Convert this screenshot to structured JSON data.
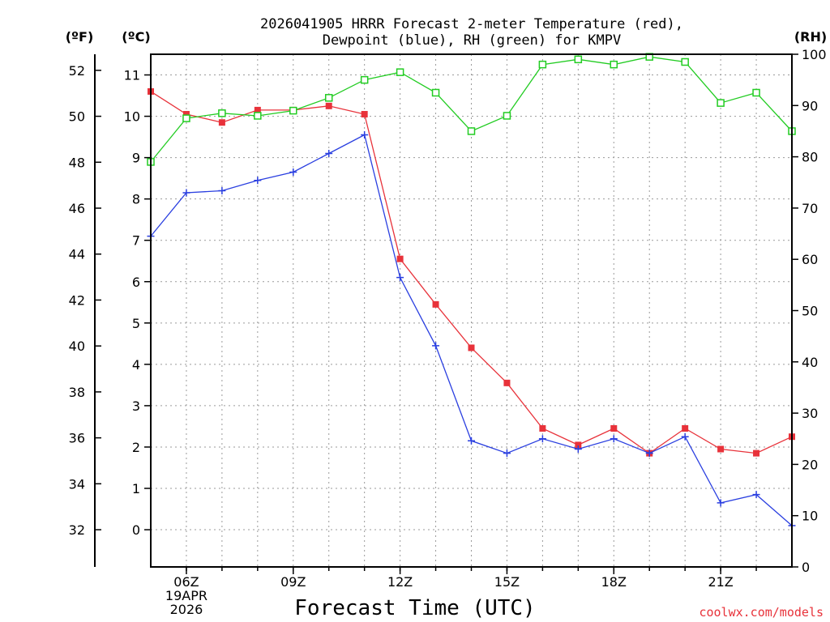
{
  "chart_data": {
    "type": "line",
    "title_line1": "2026041905 HRRR Forecast 2-meter Temperature (red),",
    "title_line2": "Dewpoint (blue), RH (green) for KMPV",
    "xlabel": "Forecast Time (UTC)",
    "credit": "coolwx.com/models",
    "units": {
      "fahrenheit": "(ºF)",
      "celsius": "(ºC)",
      "rh": "(RH)"
    },
    "x": [
      5,
      6,
      7,
      8,
      9,
      10,
      11,
      12,
      13,
      14,
      15,
      16,
      17,
      18,
      19,
      20,
      21,
      22,
      23
    ],
    "x_range": [
      5,
      23
    ],
    "x_ticks": [
      {
        "hour": 6,
        "label": "06Z",
        "date1": "19APR",
        "date2": "2026"
      },
      {
        "hour": 9,
        "label": "09Z"
      },
      {
        "hour": 12,
        "label": "12Z"
      },
      {
        "hour": 15,
        "label": "15Z"
      },
      {
        "hour": 18,
        "label": "18Z"
      },
      {
        "hour": 21,
        "label": "21Z"
      }
    ],
    "celsius_range": [
      -0.9,
      11.5
    ],
    "celsius_ticks": [
      0,
      1,
      2,
      3,
      4,
      5,
      6,
      7,
      8,
      9,
      10,
      11
    ],
    "fahrenheit_ticks": [
      32,
      34,
      36,
      38,
      40,
      42,
      44,
      46,
      48,
      50,
      52
    ],
    "rh_range": [
      0,
      100
    ],
    "rh_ticks": [
      0,
      10,
      20,
      30,
      40,
      50,
      60,
      70,
      80,
      90,
      100
    ],
    "series": [
      {
        "name": "Temperature",
        "axis": "celsius",
        "color": "#e8323a",
        "marker": "filled-square",
        "values": [
          10.6,
          10.05,
          9.85,
          10.15,
          10.15,
          10.25,
          10.05,
          6.55,
          5.45,
          4.4,
          3.55,
          2.45,
          2.05,
          2.45,
          1.85,
          2.45,
          1.95,
          1.85,
          2.25
        ]
      },
      {
        "name": "Dewpoint",
        "axis": "celsius",
        "color": "#2a3fe0",
        "marker": "plus",
        "values": [
          7.1,
          8.15,
          8.2,
          8.45,
          8.65,
          9.1,
          9.55,
          6.1,
          4.45,
          2.15,
          1.85,
          2.2,
          1.95,
          2.2,
          1.85,
          2.25,
          0.65,
          0.85,
          0.1
        ]
      },
      {
        "name": "RH",
        "axis": "rh",
        "color": "#22cc22",
        "marker": "open-square",
        "values": [
          79,
          87.5,
          88.5,
          88,
          89,
          91.5,
          95,
          96.5,
          92.5,
          85,
          88,
          98,
          99,
          98,
          99.5,
          98.5,
          90.5,
          92.5,
          85
        ]
      }
    ]
  }
}
